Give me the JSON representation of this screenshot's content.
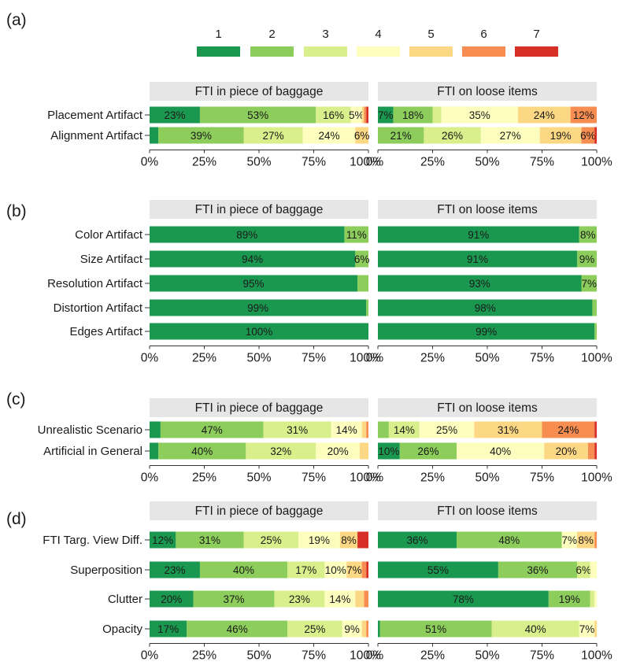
{
  "chart_data": {
    "type": "bar",
    "stacked": true,
    "orientation": "horizontal",
    "legend": {
      "placement": "top",
      "entries": [
        "1",
        "2",
        "3",
        "4",
        "5",
        "6",
        "7"
      ],
      "colors": [
        "#1a9850",
        "#8ccd5b",
        "#d8ef8b",
        "#fdfdbe",
        "#fdd884",
        "#f88d52",
        "#d73027"
      ]
    },
    "x_ticks": [
      "0%",
      "25%",
      "50%",
      "75%",
      "100%"
    ],
    "xlim": [
      0,
      100
    ],
    "facets": [
      "FTI in piece of baggage",
      "FTI on loose items"
    ],
    "panels": [
      {
        "label": "(a)",
        "rows": [
          {
            "name": "Placement Artifact",
            "values": [
              [
                23,
                53,
                16,
                5,
                1,
                1,
                1
              ],
              [
                7,
                18,
                4,
                35,
                24,
                12,
                0
              ]
            ],
            "labels": [
              [
                "23%",
                "53%",
                "16%",
                "5%",
                "",
                "",
                ""
              ],
              [
                "7%",
                "18%",
                "",
                "35%",
                "24%",
                "12%",
                ""
              ]
            ]
          },
          {
            "name": "Alignment Artifact",
            "values": [
              [
                4,
                39,
                27,
                24,
                6,
                0,
                0
              ],
              [
                0,
                21,
                26,
                27,
                19,
                6,
                1
              ]
            ],
            "labels": [
              [
                "",
                "39%",
                "27%",
                "24%",
                "6%",
                "",
                ""
              ],
              [
                "",
                "21%",
                "26%",
                "27%",
                "19%",
                "6%",
                ""
              ]
            ]
          }
        ]
      },
      {
        "label": "(b)",
        "rows": [
          {
            "name": "Color Artifact",
            "values": [
              [
                89,
                11,
                0,
                0,
                0,
                0,
                0
              ],
              [
                91,
                8,
                0,
                0,
                0,
                0,
                0
              ]
            ],
            "labels": [
              [
                "89%",
                "11%",
                "",
                "",
                "",
                "",
                ""
              ],
              [
                "91%",
                "8%",
                "",
                "",
                "",
                "",
                ""
              ]
            ]
          },
          {
            "name": "Size Artifact",
            "values": [
              [
                94,
                6,
                0,
                0,
                0,
                0,
                0
              ],
              [
                91,
                9,
                0,
                0,
                0,
                0,
                0
              ]
            ],
            "labels": [
              [
                "94%",
                "6%",
                "",
                "",
                "",
                "",
                ""
              ],
              [
                "91%",
                "9%",
                "",
                "",
                "",
                "",
                ""
              ]
            ]
          },
          {
            "name": "Resolution Artifact",
            "values": [
              [
                95,
                5,
                0,
                0,
                0,
                0,
                0
              ],
              [
                93,
                7,
                0,
                0,
                0,
                0,
                0
              ]
            ],
            "labels": [
              [
                "95%",
                "",
                "",
                "",
                "",
                "",
                ""
              ],
              [
                "93%",
                "7%",
                "",
                "",
                "",
                "",
                ""
              ]
            ]
          },
          {
            "name": "Distortion Artifact",
            "values": [
              [
                99,
                1,
                0,
                0,
                0,
                0,
                0
              ],
              [
                98,
                2,
                0,
                0,
                0,
                0,
                0
              ]
            ],
            "labels": [
              [
                "99%",
                "",
                "",
                "",
                "",
                "",
                ""
              ],
              [
                "98%",
                "",
                "",
                "",
                "",
                "",
                ""
              ]
            ]
          },
          {
            "name": "Edges Artifact",
            "values": [
              [
                100,
                0,
                0,
                0,
                0,
                0,
                0
              ],
              [
                99,
                1,
                0,
                0,
                0,
                0,
                0
              ]
            ],
            "labels": [
              [
                "100%",
                "",
                "",
                "",
                "",
                "",
                ""
              ],
              [
                "99%",
                "",
                "",
                "",
                "",
                "",
                ""
              ]
            ]
          }
        ]
      },
      {
        "label": "(c)",
        "rows": [
          {
            "name": "Unrealistic Scenario",
            "values": [
              [
                5,
                47,
                31,
                14,
                2,
                1,
                0
              ],
              [
                0,
                5,
                14,
                25,
                31,
                24,
                1
              ]
            ],
            "labels": [
              [
                "",
                "47%",
                "31%",
                "14%",
                "",
                "",
                ""
              ],
              [
                "",
                "",
                "14%",
                "25%",
                "31%",
                "24%",
                ""
              ]
            ]
          },
          {
            "name": "Artificial in General",
            "values": [
              [
                4,
                40,
                32,
                20,
                4,
                0,
                0
              ],
              [
                10,
                26,
                0,
                40,
                20,
                3,
                1
              ]
            ],
            "labels": [
              [
                "",
                "40%",
                "32%",
                "20%",
                "",
                "",
                ""
              ],
              [
                "10%",
                "26%",
                "",
                "40%",
                "20%",
                "",
                ""
              ]
            ]
          }
        ]
      },
      {
        "label": "(d)",
        "rows": [
          {
            "name": "FTI Targ. View Diff.",
            "values": [
              [
                12,
                31,
                25,
                19,
                8,
                0,
                5
              ],
              [
                36,
                48,
                0,
                7,
                8,
                1,
                0
              ]
            ],
            "labels": [
              [
                "12%",
                "31%",
                "25%",
                "19%",
                "8%",
                "",
                ""
              ],
              [
                "36%",
                "48%",
                "",
                "7%",
                "8%",
                "",
                ""
              ]
            ]
          },
          {
            "name": "Superposition",
            "values": [
              [
                23,
                40,
                17,
                10,
                7,
                2,
                1
              ],
              [
                55,
                36,
                6,
                3,
                0,
                0,
                0
              ]
            ],
            "labels": [
              [
                "23%",
                "40%",
                "17%",
                "10%",
                "7%",
                "",
                ""
              ],
              [
                "55%",
                "36%",
                "6%",
                "",
                "",
                "",
                ""
              ]
            ]
          },
          {
            "name": "Clutter",
            "values": [
              [
                20,
                37,
                23,
                14,
                4,
                2,
                0
              ],
              [
                78,
                19,
                2,
                1,
                0,
                0,
                0
              ]
            ],
            "labels": [
              [
                "20%",
                "37%",
                "23%",
                "14%",
                "",
                "",
                ""
              ],
              [
                "78%",
                "19%",
                "",
                "",
                "",
                "",
                ""
              ]
            ]
          },
          {
            "name": "Opacity",
            "values": [
              [
                17,
                46,
                25,
                9,
                2,
                1,
                0
              ],
              [
                1,
                51,
                40,
                7,
                1,
                0,
                0
              ]
            ],
            "labels": [
              [
                "17%",
                "46%",
                "25%",
                "9%",
                "",
                "",
                ""
              ],
              [
                "",
                "51%",
                "40%",
                "7%",
                "",
                "",
                ""
              ]
            ]
          }
        ]
      }
    ]
  }
}
